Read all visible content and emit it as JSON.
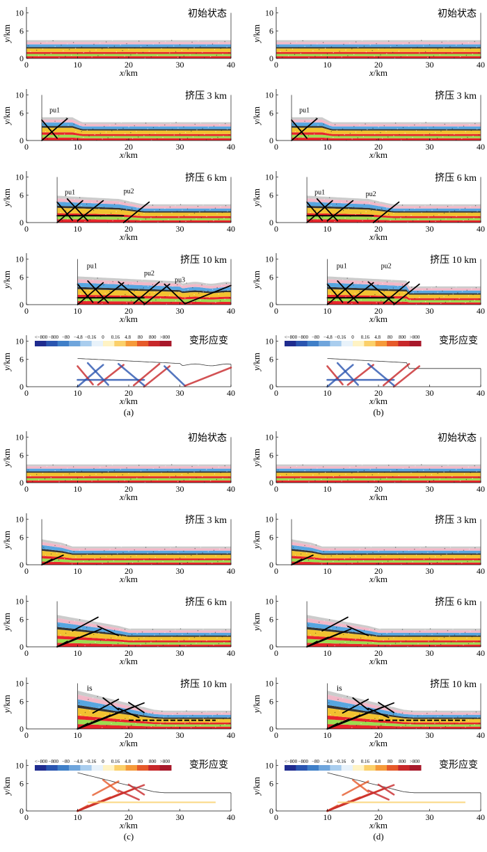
{
  "axes": {
    "x_label_var": "x",
    "x_label_unit": "/km",
    "y_label_var": "y",
    "y_label_unit": "/km",
    "x_ticks": [
      "0",
      "10",
      "20",
      "30",
      "40"
    ],
    "y_ticks": [
      "0",
      "6",
      "10"
    ]
  },
  "colorbar": {
    "title": "变形应变",
    "tick_labels": [
      "<−800",
      "−800",
      "−80",
      "−4.8",
      "−0.16",
      "0",
      "0.16",
      "4.8",
      "80",
      "800",
      ">800"
    ],
    "colors": [
      "#1f2c8f",
      "#2a55b0",
      "#3f7fc8",
      "#6fa5dc",
      "#a9cdee",
      "#e8f2fa",
      "#fff3c4",
      "#fbd06a",
      "#f59a3a",
      "#e65a2a",
      "#c8282a",
      "#a8182a"
    ]
  },
  "layer_colors": [
    "#e8252b",
    "#9ddc4f",
    "#e8252b",
    "#f2c230",
    "#333333",
    "#58a6e0",
    "#f2b8c8",
    "#cccccc"
  ],
  "models": [
    {
      "label": "(a)",
      "panels": [
        {
          "stage": "初始状态",
          "shortening_km": 0,
          "annotations": []
        },
        {
          "stage": "挤压 3 km",
          "shortening_km": 3,
          "annotations": [
            "pu1"
          ]
        },
        {
          "stage": "挤压 6 km",
          "shortening_km": 6,
          "annotations": [
            "pu1",
            "pu2"
          ]
        },
        {
          "stage": "挤压 10 km",
          "shortening_km": 10,
          "annotations": [
            "pu1",
            "pu2",
            "pu3"
          ]
        }
      ]
    },
    {
      "label": "(b)",
      "panels": [
        {
          "stage": "初始状态",
          "shortening_km": 0,
          "annotations": []
        },
        {
          "stage": "挤压 3 km",
          "shortening_km": 3,
          "annotations": [
            "pu1"
          ]
        },
        {
          "stage": "挤压 6 km",
          "shortening_km": 6,
          "annotations": [
            "pu1",
            "pu2"
          ]
        },
        {
          "stage": "挤压 10 km",
          "shortening_km": 10,
          "annotations": [
            "pu1",
            "pu2"
          ]
        }
      ]
    },
    {
      "label": "(c)",
      "panels": [
        {
          "stage": "初始状态",
          "shortening_km": 0,
          "annotations": []
        },
        {
          "stage": "挤压 3 km",
          "shortening_km": 3,
          "annotations": []
        },
        {
          "stage": "挤压 6 km",
          "shortening_km": 6,
          "annotations": []
        },
        {
          "stage": "挤压 10 km",
          "shortening_km": 10,
          "annotations": [
            "is"
          ]
        }
      ]
    },
    {
      "label": "(d)",
      "panels": [
        {
          "stage": "初始状态",
          "shortening_km": 0,
          "annotations": []
        },
        {
          "stage": "挤压 3 km",
          "shortening_km": 3,
          "annotations": []
        },
        {
          "stage": "挤压 6 km",
          "shortening_km": 6,
          "annotations": []
        },
        {
          "stage": "挤压 10 km",
          "shortening_km": 10,
          "annotations": [
            "is"
          ]
        }
      ]
    }
  ]
}
